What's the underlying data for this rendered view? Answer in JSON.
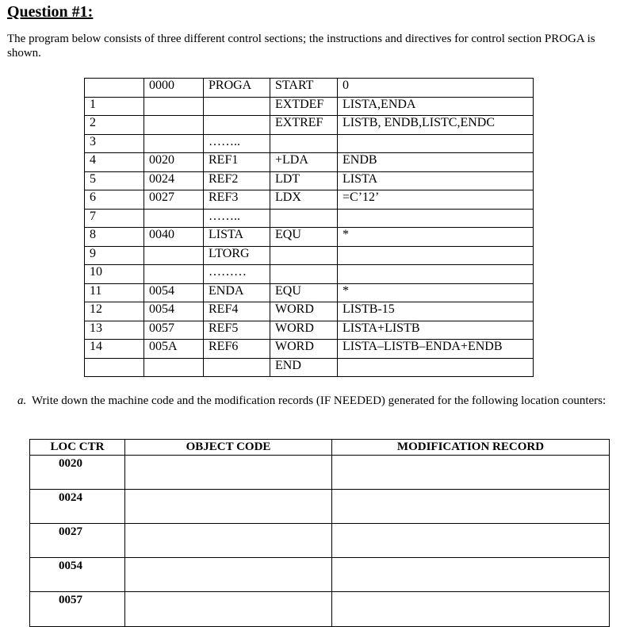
{
  "title": "Question #1:",
  "intro": "The program below consists of three different control sections; the instructions and directives for control section PROGA is shown.",
  "program_rows": [
    [
      "",
      "0000",
      "PROGA",
      "START",
      "0"
    ],
    [
      "1",
      "",
      "",
      " EXTDEF",
      "LISTA,ENDA"
    ],
    [
      "2",
      "",
      "",
      " EXTREF",
      "LISTB, ENDB,LISTC,ENDC"
    ],
    [
      "3",
      "",
      "……..",
      "",
      ""
    ],
    [
      "4",
      "0020",
      "REF1",
      "+LDA",
      "ENDB"
    ],
    [
      "5",
      "0024",
      "REF2",
      "LDT",
      "LISTA"
    ],
    [
      "6",
      "0027",
      "REF3",
      "LDX",
      "=C’12’"
    ],
    [
      "7",
      "",
      "……..",
      "",
      ""
    ],
    [
      "8",
      "0040",
      "LISTA",
      "EQU",
      "*"
    ],
    [
      "9",
      "",
      "LTORG",
      "",
      ""
    ],
    [
      "10",
      "",
      "………",
      "",
      ""
    ],
    [
      "11",
      "0054",
      "ENDA",
      "EQU",
      "*"
    ],
    [
      "12",
      "0054",
      "REF4",
      "WORD",
      "LISTB-15"
    ],
    [
      "13",
      "0057",
      "REF5",
      "WORD",
      "LISTA+LISTB"
    ],
    [
      "14",
      "005A",
      "REF6",
      "WORD",
      "LISTA–LISTB–ENDA+ENDB"
    ],
    [
      "",
      "",
      "",
      "END",
      ""
    ]
  ],
  "question_a": {
    "label": "a.",
    "text": "Write down the machine code and the modification records (IF NEEDED) generated for the following location counters:"
  },
  "answer_table": {
    "headers": [
      "LOC CTR",
      "OBJECT CODE",
      "MODIFICATION RECORD"
    ],
    "rows": [
      "0020",
      "0024",
      "0027",
      "0054",
      "0057"
    ]
  }
}
